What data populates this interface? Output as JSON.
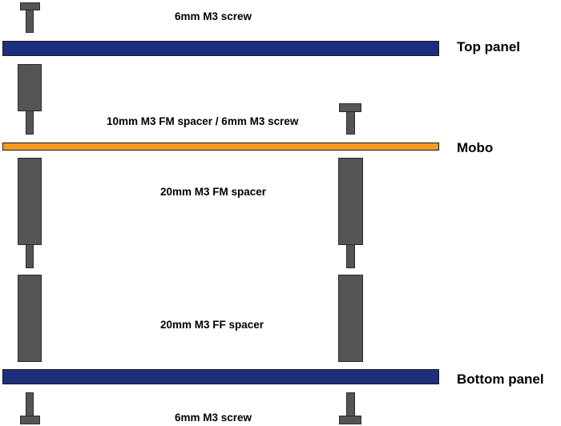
{
  "labels": {
    "top_screw": "6mm M3 screw",
    "fm_spacer_10": "10mm M3 FM spacer / 6mm M3 screw",
    "fm_spacer_20": "20mm M3 FM spacer",
    "ff_spacer_20": "20mm M3 FF spacer",
    "bottom_screw": "6mm M3 screw"
  },
  "panels": {
    "top": "Top panel",
    "mobo": "Mobo",
    "bottom": "Bottom panel"
  },
  "colors": {
    "panel": "#1b2f7c",
    "mobo": "#f59a23",
    "hardware": "#555555"
  }
}
